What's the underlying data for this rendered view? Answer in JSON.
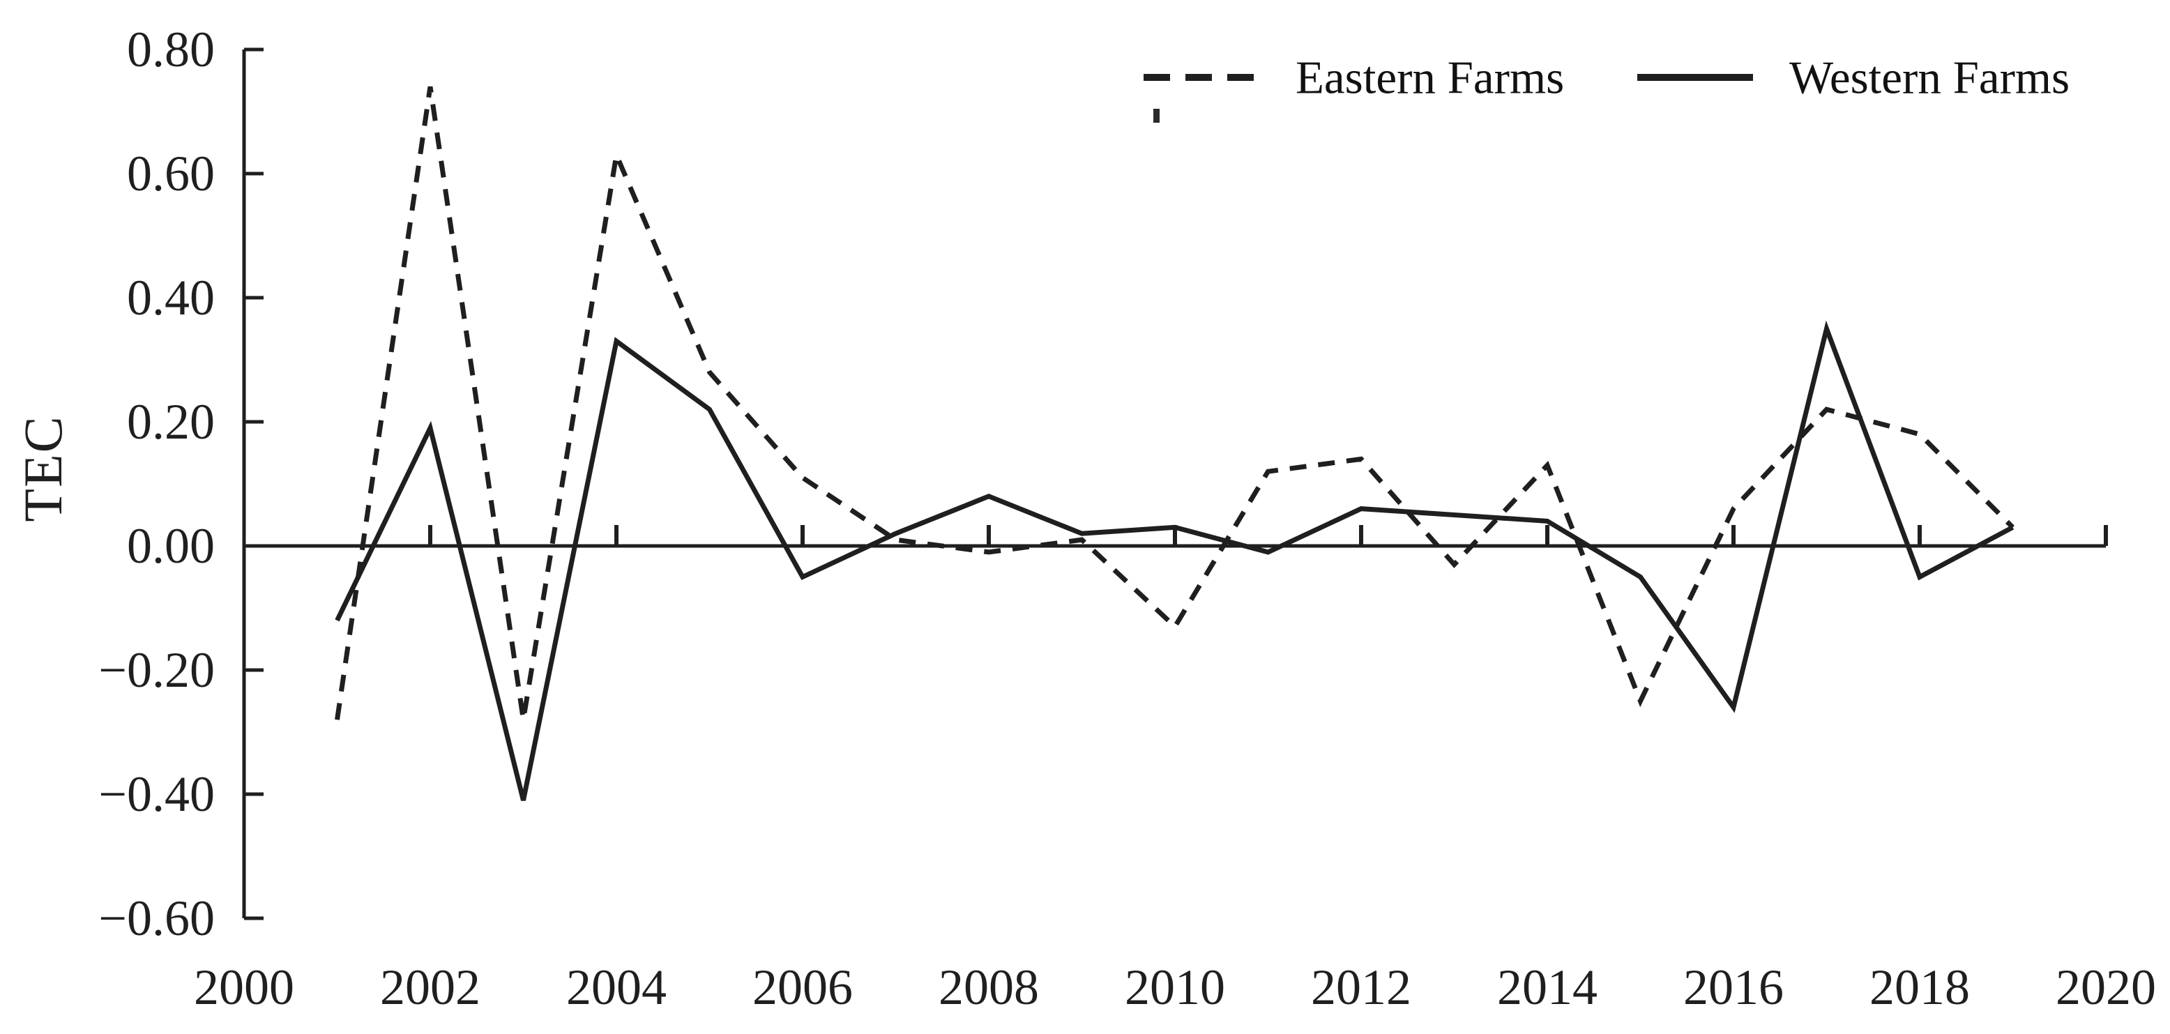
{
  "figure": {
    "background": "#ffffff",
    "ink_color": "#1f1f1f"
  },
  "y_axis": {
    "title": "TEC",
    "tick_labels": [
      "0.80",
      "0.60",
      "0.40",
      "0.20",
      "0.00",
      "−0.20",
      "−0.40",
      "−0.60"
    ],
    "tick_values": [
      0.8,
      0.6,
      0.4,
      0.2,
      0.0,
      -0.2,
      -0.4,
      -0.6
    ],
    "min": -0.6,
    "max": 0.8
  },
  "x_axis": {
    "tick_labels": [
      "2000",
      "2002",
      "2004",
      "2006",
      "2008",
      "2010",
      "2012",
      "2014",
      "2016",
      "2018",
      "2020"
    ],
    "tick_years": [
      2000,
      2002,
      2004,
      2006,
      2008,
      2010,
      2012,
      2014,
      2016,
      2018,
      2020
    ],
    "min": 2000,
    "max": 2020
  },
  "legend": {
    "items": [
      {
        "label": "Eastern Farms",
        "style": "dashed"
      },
      {
        "label": "Western Farms",
        "style": "solid"
      }
    ]
  },
  "chart_data": {
    "type": "line",
    "title": "",
    "xlabel": "",
    "ylabel": "TEC",
    "x": [
      2001,
      2002,
      2003,
      2004,
      2005,
      2006,
      2007,
      2008,
      2009,
      2010,
      2011,
      2012,
      2013,
      2014,
      2015,
      2016,
      2017,
      2018,
      2019
    ],
    "series": [
      {
        "name": "Eastern Farms",
        "style": "dashed",
        "values": [
          -0.28,
          0.74,
          -0.28,
          0.63,
          0.28,
          0.11,
          0.01,
          -0.01,
          0.01,
          -0.13,
          0.12,
          0.14,
          -0.03,
          0.13,
          -0.25,
          0.06,
          0.22,
          0.18,
          0.03
        ]
      },
      {
        "name": "Western Farms",
        "style": "solid",
        "values": [
          -0.12,
          0.19,
          -0.41,
          0.33,
          0.22,
          -0.05,
          0.02,
          0.08,
          0.02,
          0.03,
          -0.01,
          0.06,
          0.05,
          0.04,
          -0.05,
          -0.26,
          0.35,
          -0.05,
          0.03
        ]
      }
    ],
    "xlim": [
      2000,
      2020
    ],
    "ylim": [
      -0.6,
      0.8
    ],
    "y_tick_step": 0.2,
    "grid": false,
    "zero_line": true,
    "legend_position": "top-right"
  }
}
